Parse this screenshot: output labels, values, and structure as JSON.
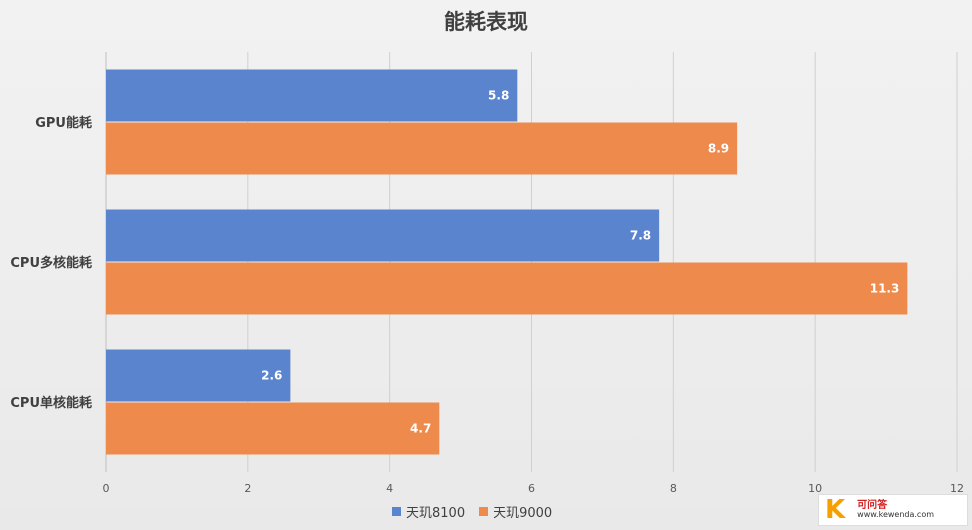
{
  "chart_data": {
    "type": "bar",
    "orientation": "horizontal",
    "title": "能耗表现",
    "categories": [
      "GPU能耗",
      "CPU多核能耗",
      "CPU单核能耗"
    ],
    "series": [
      {
        "name": "天玑8100",
        "color": "#5b84cf",
        "values": [
          5.8,
          7.8,
          2.6
        ]
      },
      {
        "name": "天玑9000",
        "color": "#ed8a4c",
        "values": [
          8.9,
          11.3,
          4.7
        ]
      }
    ],
    "xlim": [
      0,
      12
    ],
    "xticks": [
      "0",
      "2",
      "4",
      "6",
      "8",
      "10",
      "12"
    ],
    "grid": "vertical",
    "legend": "bottom"
  },
  "watermark": {
    "logo_letter": "K",
    "name": "可问答",
    "url": "www.kewenda.com"
  }
}
